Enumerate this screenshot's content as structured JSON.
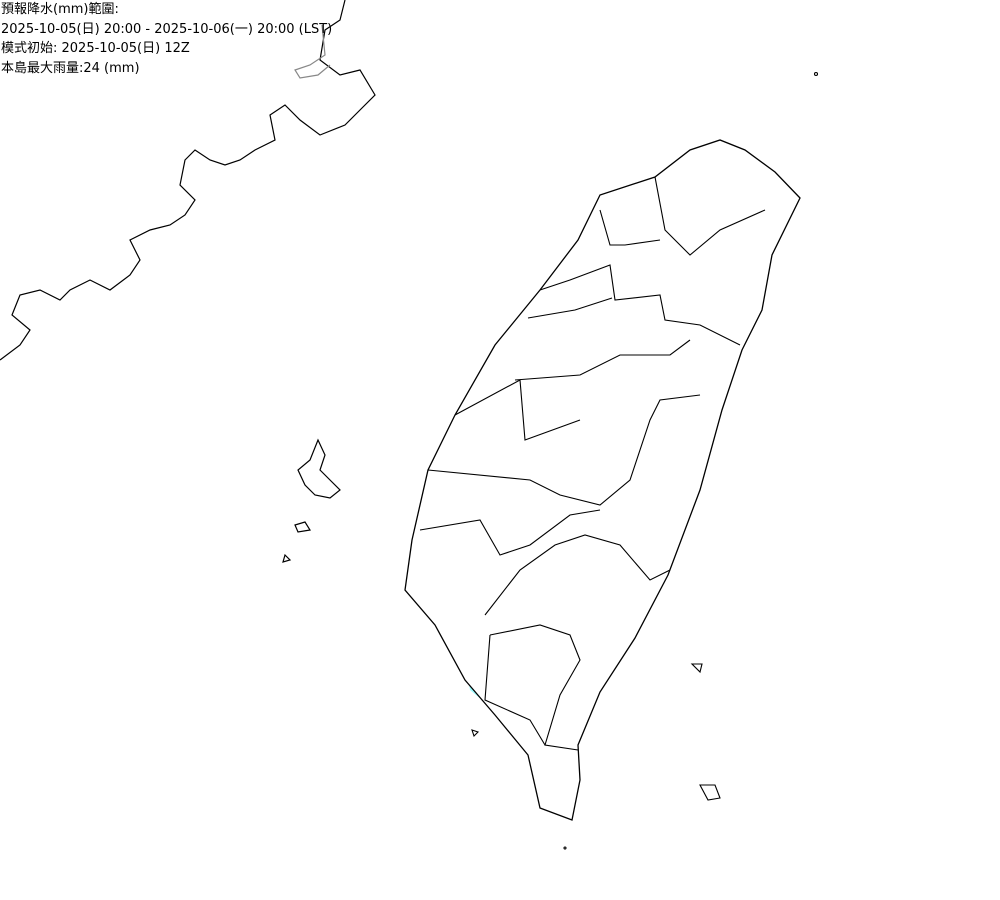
{
  "header": {
    "title": "預報降水(mm)範圍:",
    "period": "2025-10-05(日) 20:00 - 2025-10-06(一) 20:00 (LST)",
    "model_init": "模式初始: 2025-10-05(日) 12Z",
    "max_rain": "本島最大雨量:24 (mm)"
  },
  "map": {
    "region": "Taiwan",
    "colors": {
      "trace": "#c0c0c0",
      "level1": "#9cfcff",
      "level2": "#03c8ff",
      "level3": "#059bff",
      "level4": "#0363ff",
      "level5": "#009902",
      "level6": "#33ff00",
      "coast": "#000000"
    }
  }
}
